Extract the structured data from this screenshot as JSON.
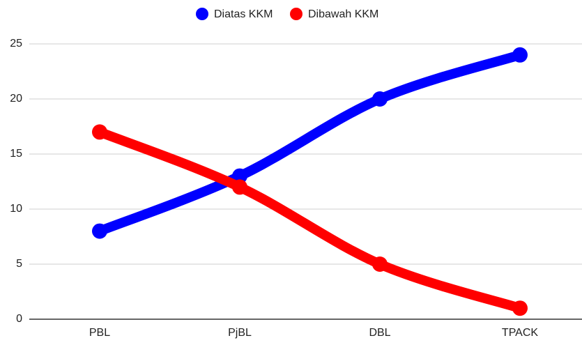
{
  "chart_data": {
    "type": "line",
    "categories": [
      "PBL",
      "PjBL",
      "DBL",
      "TPACK"
    ],
    "series": [
      {
        "name": "Diatas KKM",
        "color": "#0000ff",
        "values": [
          8,
          13,
          20,
          24
        ]
      },
      {
        "name": "Dibawah KKM",
        "color": "#ff0000",
        "values": [
          17,
          12,
          5,
          1
        ]
      }
    ],
    "ylim": [
      0,
      25
    ],
    "yticks": [
      0,
      5,
      10,
      15,
      20,
      25
    ],
    "grid": true,
    "legend": "top",
    "smooth": true
  }
}
